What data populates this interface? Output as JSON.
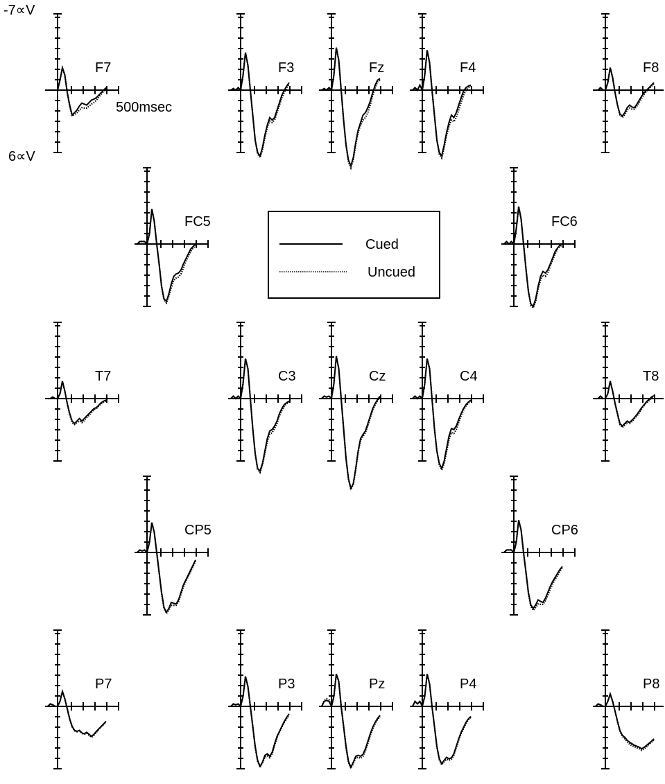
{
  "chart_data": {
    "type": "line",
    "y_axis_top_label": "-7∝V",
    "y_axis_bottom_label": "6∝V",
    "x_axis_end_label": "500msec",
    "ylim": [
      -7,
      6
    ],
    "y_inverted": true,
    "xlim": [
      -100,
      500
    ],
    "grid": false,
    "legend": {
      "placement": "center",
      "entries": [
        {
          "name": "Cued",
          "style": "solid"
        },
        {
          "name": "Uncued",
          "style": "dotted"
        }
      ]
    },
    "colors": {
      "line": "#000000",
      "axis": "#000000",
      "background": "#ffffff"
    },
    "series_names": [
      "Cued",
      "Uncued"
    ],
    "x": [
      -100,
      -75,
      -50,
      -25,
      0,
      25,
      50,
      75,
      100,
      125,
      150,
      175,
      200,
      225,
      250,
      275,
      300,
      325,
      350,
      375,
      400,
      425,
      450,
      475,
      500
    ],
    "channels": [
      {
        "name": "F7",
        "cued": [
          0,
          0,
          0,
          0,
          0,
          -2,
          -4.5,
          -3,
          0.5,
          3,
          5,
          4.5,
          4,
          3.2,
          2.6,
          2.8,
          3,
          2.5,
          2,
          1.8,
          1.5,
          1.0,
          0.5,
          0,
          -0.5
        ],
        "uncued": [
          0,
          0,
          0,
          0,
          0,
          -2,
          -4.4,
          -3,
          0.5,
          3.2,
          5.2,
          4.9,
          4.5,
          4.0,
          3.5,
          3.6,
          3.6,
          3.2,
          2.8,
          2.5,
          2.0,
          1.4,
          0.8,
          0.2,
          -0.3
        ]
      },
      {
        "name": "F3",
        "cued": [
          0,
          -0.3,
          0,
          -0.5,
          0,
          -3,
          -7.5,
          -5,
          0,
          5,
          10,
          12.5,
          13.2,
          11.5,
          9,
          7,
          5.5,
          6,
          5.5,
          4,
          2.5,
          1,
          0,
          -0.8,
          -1.5
        ],
        "uncued": [
          0,
          -0.3,
          0,
          -0.5,
          0,
          -3,
          -7.5,
          -5,
          0,
          5,
          10,
          12.8,
          13.5,
          12,
          9.5,
          7.5,
          6.2,
          6.5,
          6,
          4.5,
          3,
          1.5,
          0.5,
          -0.5,
          -1.2
        ]
      },
      {
        "name": "Fz",
        "cued": [
          0,
          -0.3,
          0,
          -0.5,
          0,
          -3,
          -8.5,
          -6,
          0,
          6,
          11,
          14,
          15.2,
          13.5,
          10.5,
          8,
          6.5,
          5,
          4.5,
          3.5,
          2.2,
          0.5,
          -1,
          -2,
          -2.3
        ],
        "uncued": [
          0,
          -0.3,
          0,
          -0.5,
          0,
          -3,
          -8.5,
          -6,
          0,
          6,
          11,
          14.5,
          15.6,
          14,
          11,
          8.5,
          7,
          6,
          5.5,
          4.5,
          3,
          1,
          -0.5,
          -1.7,
          -2.0
        ]
      },
      {
        "name": "F4",
        "cued": [
          0,
          -0.5,
          0,
          -1,
          0,
          -3,
          -8,
          -5.5,
          0,
          5,
          10,
          12.5,
          13.2,
          11,
          8.5,
          6.5,
          5,
          5.5,
          4.5,
          3,
          1.5,
          0.2,
          -0.5,
          -0.8,
          -1
        ],
        "uncued": [
          0,
          -0.5,
          0,
          -1,
          0,
          -3,
          -8,
          -5.5,
          0,
          5,
          10,
          12.8,
          13.6,
          11.5,
          9,
          7.2,
          6,
          6.3,
          5.5,
          4,
          2.5,
          1,
          0,
          -0.5,
          -0.8
        ]
      },
      {
        "name": "F8",
        "cued": [
          0,
          0,
          -0.5,
          0,
          0,
          -1.5,
          -4.5,
          -2.5,
          0.5,
          3,
          4.8,
          5.2,
          4.5,
          3.5,
          3.0,
          3.4,
          3.5,
          2.8,
          2,
          1.2,
          0.5,
          0,
          -0.5,
          -1.0,
          -1.5
        ],
        "uncued": [
          0,
          0,
          -0.5,
          0,
          0,
          -1.5,
          -4.5,
          -2.5,
          0.5,
          3,
          5,
          5.5,
          4.9,
          4,
          3.6,
          3.8,
          3.8,
          3.2,
          2.4,
          1.6,
          0.8,
          0.2,
          -0.3,
          -0.8,
          -1.3
        ]
      },
      {
        "name": "FC5",
        "cued": [
          0,
          -0.5,
          -0.5,
          -0.5,
          0,
          -2,
          -7,
          -4.5,
          0,
          4,
          8.5,
          11,
          11.5,
          10,
          8,
          6.5,
          6,
          5.8,
          5.2,
          4,
          3,
          2,
          1,
          0.5,
          0
        ],
        "uncued": [
          0,
          -0.5,
          -0.5,
          -0.5,
          0,
          -2,
          -7,
          -4.5,
          0,
          4,
          8.5,
          11.2,
          11.8,
          10.5,
          8.8,
          7.3,
          6.8,
          6.6,
          6,
          4.8,
          3.5,
          2.5,
          1.5,
          0.8,
          0.3
        ]
      },
      {
        "name": "FC6",
        "cued": [
          0,
          -0.5,
          0,
          -0.5,
          0,
          -3,
          -7.5,
          -5,
          0,
          5,
          9.5,
          12,
          12.5,
          11,
          8.5,
          6.5,
          5.5,
          5.8,
          5.2,
          4,
          2.8,
          1.5,
          0.8,
          0.2,
          0
        ],
        "uncued": [
          0,
          -0.5,
          0,
          -0.5,
          0,
          -3,
          -7.5,
          -5,
          0,
          5,
          9.5,
          12.3,
          12.8,
          11.5,
          9,
          7.2,
          6.2,
          6.5,
          5.8,
          4.5,
          3.2,
          2,
          1,
          0.5,
          0.2
        ]
      },
      {
        "name": "T7",
        "cued": [
          0,
          0,
          -0.3,
          0,
          0,
          -1,
          -3.5,
          -1.5,
          1,
          3,
          4.5,
          5,
          4.5,
          4.0,
          4.5,
          4,
          3.5,
          3,
          2.5,
          2,
          1.8,
          1.3,
          0.8,
          0.5,
          0.3
        ],
        "uncued": [
          0,
          0,
          -0.3,
          0,
          0,
          -1,
          -3.4,
          -1.5,
          1,
          3.2,
          4.8,
          5.2,
          4.8,
          4.5,
          4.8,
          4.4,
          3.8,
          3.3,
          2.8,
          2.2,
          2.0,
          1.5,
          1.0,
          0.7,
          0.5
        ]
      },
      {
        "name": "C3",
        "cued": [
          0,
          -0.5,
          0,
          -0.5,
          0,
          -3,
          -8,
          -6,
          0,
          6,
          11,
          14,
          14.5,
          13,
          10.5,
          8,
          6.5,
          6.2,
          5.5,
          4.5,
          3,
          2,
          1.2,
          0.8,
          0.5
        ],
        "uncued": [
          0,
          -0.5,
          0,
          -0.5,
          0,
          -3,
          -8,
          -6,
          0,
          6,
          11,
          14.2,
          14.8,
          13.3,
          11,
          8.6,
          7.2,
          6.8,
          6,
          5,
          3.5,
          2.4,
          1.5,
          1,
          0.7
        ]
      },
      {
        "name": "Cz",
        "cued": [
          0,
          -0.5,
          -0.3,
          -0.5,
          0,
          -3,
          -8.5,
          -6,
          0,
          6,
          12,
          16,
          18,
          17,
          14,
          10.5,
          8,
          7.2,
          6.5,
          5,
          3.5,
          2,
          1,
          0.2,
          -0.5
        ],
        "uncued": [
          0,
          -0.5,
          -0.3,
          -0.5,
          0,
          -3,
          -8.5,
          -6,
          0,
          6,
          12,
          16.2,
          18.2,
          17.2,
          14.3,
          10.8,
          8.3,
          7.6,
          6.8,
          5.4,
          3.8,
          2.3,
          1.3,
          0.4,
          -0.3
        ]
      },
      {
        "name": "C4",
        "cued": [
          0,
          -0.5,
          0,
          -0.5,
          0,
          -3,
          -8,
          -6,
          0,
          6,
          10.5,
          13,
          14,
          12.5,
          10,
          7.5,
          6,
          6.2,
          5.5,
          4.2,
          3,
          2,
          1.2,
          0.7,
          0.3
        ],
        "uncued": [
          0,
          -0.5,
          0,
          -0.5,
          0,
          -3,
          -8,
          -6,
          0,
          6,
          10.5,
          13.3,
          14.3,
          13,
          10.6,
          8.2,
          6.8,
          7,
          6.2,
          4.8,
          3.4,
          2.3,
          1.5,
          0.9,
          0.5
        ]
      },
      {
        "name": "T8",
        "cued": [
          0,
          0,
          -0.5,
          0,
          0,
          -1,
          -3.5,
          -1.5,
          1,
          3,
          5,
          5.5,
          5,
          4.5,
          4.8,
          4.3,
          3.8,
          3.2,
          2.5,
          1.8,
          1.2,
          0.6,
          0.2,
          -0.3,
          -0.6
        ],
        "uncued": [
          0,
          0,
          -0.5,
          0,
          0,
          -1,
          -3.4,
          -1.5,
          1,
          3.2,
          5.2,
          5.8,
          5.3,
          4.8,
          5,
          4.6,
          4,
          3.5,
          2.8,
          2,
          1.4,
          0.8,
          0.4,
          -0.1,
          -0.4
        ]
      },
      {
        "name": "CP5",
        "cued": [
          0,
          -0.5,
          -0.3,
          -0.5,
          0,
          -2,
          -6,
          -4,
          0,
          4,
          8,
          11,
          12,
          11.2,
          10,
          10.2,
          10.3,
          9.5,
          8,
          6.5,
          5.5,
          4.5,
          3.5,
          2.5,
          1.5
        ],
        "uncued": [
          0,
          -0.5,
          -0.3,
          -0.5,
          0,
          -2,
          -6,
          -4,
          0,
          4,
          8.2,
          11.2,
          12.2,
          11.6,
          10.6,
          10.6,
          10.6,
          9.8,
          8.4,
          6.9,
          5.8,
          4.8,
          3.8,
          2.8,
          1.8
        ]
      },
      {
        "name": "CP6",
        "cued": [
          0,
          -0.5,
          -0.5,
          -0.5,
          0,
          -2,
          -6.5,
          -4.5,
          0,
          4,
          8,
          10.5,
          11.2,
          10.5,
          9.5,
          9.8,
          10,
          9.2,
          8,
          6.8,
          5.8,
          5.0,
          4.2,
          3.4,
          2.8
        ],
        "uncued": [
          0,
          -0.5,
          -0.5,
          -0.5,
          0,
          -2,
          -6.5,
          -4.5,
          0,
          4,
          8.2,
          10.8,
          11.6,
          11,
          10.3,
          10.4,
          10.4,
          9.7,
          8.6,
          7.4,
          6.3,
          5.4,
          4.6,
          3.8,
          3.0
        ]
      },
      {
        "name": "P7",
        "cued": [
          0,
          -0.5,
          -0.3,
          0,
          0,
          -1,
          -3,
          -1.5,
          0.5,
          2.5,
          4,
          4.8,
          5,
          4.8,
          5.3,
          5.5,
          5.2,
          5.6,
          6,
          5.6,
          5.0,
          4.5,
          4.0,
          3.5,
          3.0
        ],
        "uncued": [
          0,
          -0.5,
          -0.3,
          0,
          0,
          -1,
          -3,
          -1.5,
          0.5,
          2.6,
          4.1,
          4.9,
          5.1,
          4.9,
          5.4,
          5.6,
          5.4,
          5.8,
          6.2,
          5.8,
          5.2,
          4.6,
          4.1,
          3.6,
          3.2
        ]
      },
      {
        "name": "P3",
        "cued": [
          0,
          -0.5,
          -0.3,
          -0.5,
          0,
          -2,
          -6,
          -4,
          0,
          4,
          8,
          10.8,
          12,
          11.2,
          9.8,
          9.5,
          10,
          9.2,
          7.5,
          6,
          5,
          4,
          3,
          2.2,
          1.5
        ],
        "uncued": [
          0,
          -0.5,
          -0.3,
          -0.5,
          0,
          -2,
          -6,
          -4,
          0,
          4,
          8.2,
          11,
          12.2,
          11.4,
          10.2,
          9.9,
          10.3,
          9.5,
          7.8,
          6.3,
          5.2,
          4.2,
          3.2,
          2.4,
          1.8
        ]
      },
      {
        "name": "Pz",
        "cued": [
          0,
          -1,
          -1.2,
          -1,
          0,
          -2,
          -6.5,
          -5,
          0,
          4,
          8,
          11,
          12.2,
          11.2,
          10,
          9.8,
          10,
          9.6,
          8.5,
          7,
          5.5,
          4.2,
          3.2,
          2.4,
          1.8
        ],
        "uncued": [
          0,
          -1.2,
          -1.5,
          -1.3,
          0,
          -2,
          -6.5,
          -5,
          0,
          4,
          8.2,
          11.2,
          12.4,
          11.5,
          10.3,
          10.2,
          10.4,
          10,
          8.9,
          7.4,
          5.8,
          4.5,
          3.5,
          2.6,
          2.0
        ]
      },
      {
        "name": "P4",
        "cued": [
          0,
          -1,
          -0.5,
          -1,
          0,
          -2,
          -6.5,
          -4.5,
          0,
          4,
          8,
          10.5,
          11.5,
          10.8,
          10.2,
          10.5,
          10.3,
          9.5,
          8,
          6.5,
          5.2,
          4.2,
          3.2,
          2.5,
          2
        ],
        "uncued": [
          0,
          -1,
          -0.5,
          -1,
          0,
          -2,
          -6.5,
          -4.5,
          0,
          4,
          8.2,
          10.7,
          11.7,
          11.1,
          10.6,
          10.8,
          10.6,
          9.8,
          8.3,
          6.8,
          5.5,
          4.4,
          3.4,
          2.7,
          2.2
        ]
      },
      {
        "name": "P8",
        "cued": [
          0,
          -0.5,
          -0.3,
          0,
          0,
          -1,
          -2.5,
          -1,
          1,
          3,
          4.8,
          5.8,
          6.2,
          6.8,
          7.2,
          7.5,
          7.8,
          8.0,
          8.2,
          8.5,
          8.2,
          7.8,
          7.4,
          7.0,
          6.5
        ],
        "uncued": [
          0,
          -0.5,
          -0.3,
          0,
          0,
          -1,
          -2.4,
          -1,
          1,
          3.1,
          5,
          6,
          6.5,
          7.1,
          7.6,
          7.9,
          8.1,
          8.3,
          8.5,
          8.8,
          8.5,
          8.1,
          7.6,
          7.2,
          6.8
        ]
      }
    ]
  }
}
